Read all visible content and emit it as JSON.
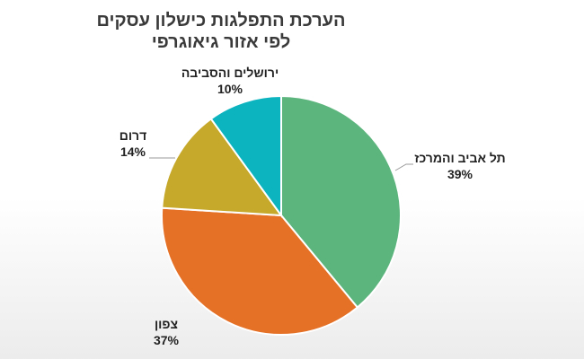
{
  "chart_data": {
    "type": "pie",
    "title": "הערכת התפלגות כישלון עסקים",
    "subtitle": "לפי אזור גיאוגרפי",
    "slices": [
      {
        "label": "תל אביב והמרכז",
        "pct_label": "39%",
        "value": 39,
        "color": "#5db57e"
      },
      {
        "label": "צפון",
        "pct_label": "37%",
        "value": 37,
        "color": "#e57127"
      },
      {
        "label": "דרום",
        "pct_label": "14%",
        "value": 14,
        "color": "#c6a82a"
      },
      {
        "label": "ירושלים והסביבה",
        "pct_label": "10%",
        "value": 10,
        "color": "#0cb4c0"
      }
    ]
  }
}
